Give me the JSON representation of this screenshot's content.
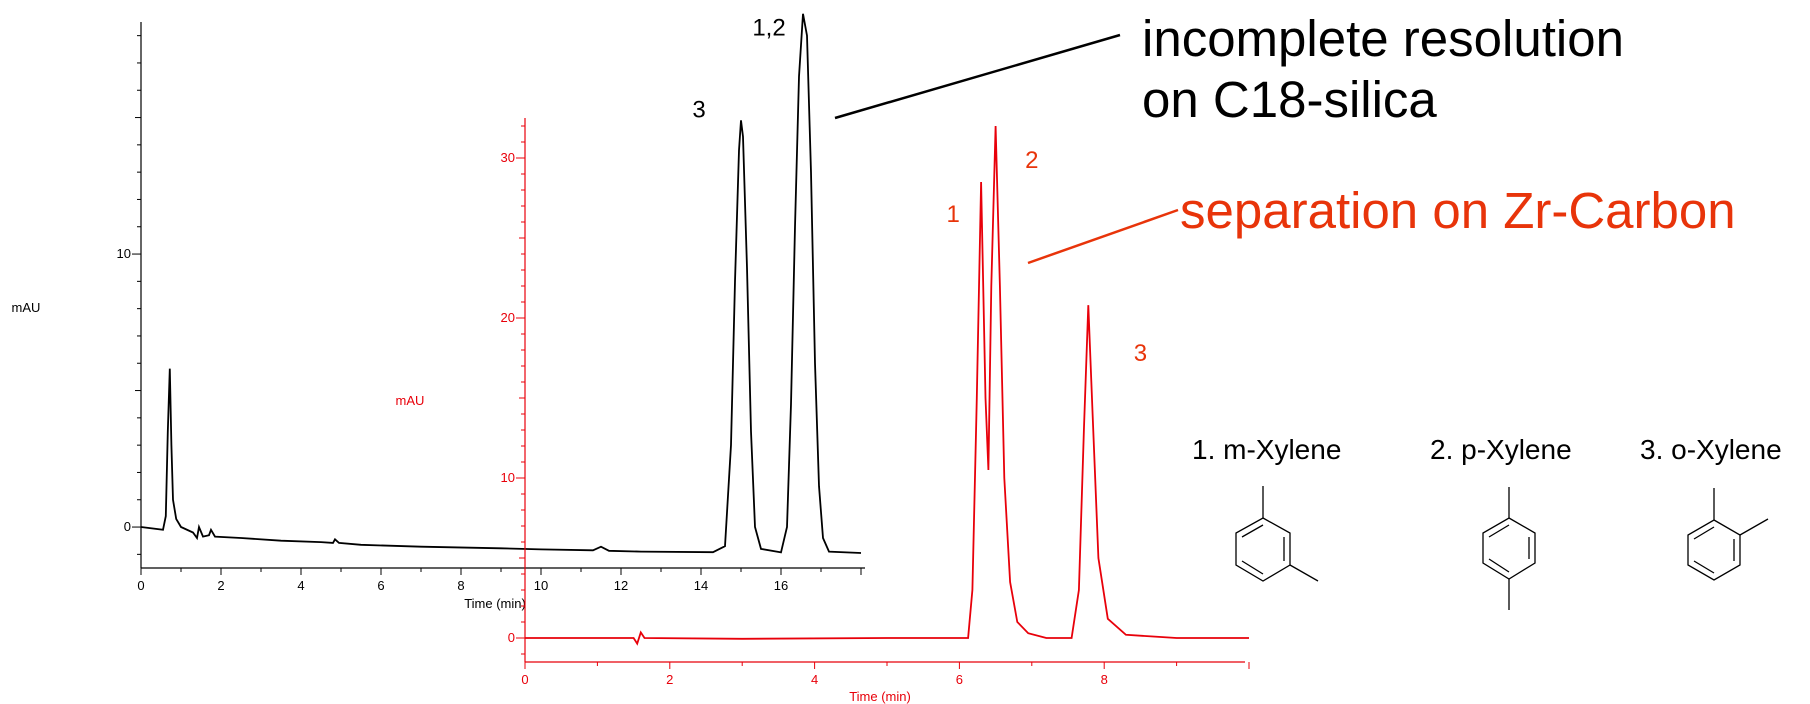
{
  "chart_data": [
    {
      "type": "line",
      "color": "#000000",
      "xlabel": "Time (min)",
      "ylabel": "mAU",
      "xlim": [
        0,
        18
      ],
      "ylim": [
        -1.5,
        18.5
      ],
      "x_ticks": [
        0,
        2,
        4,
        6,
        8,
        10,
        12,
        14,
        16
      ],
      "x_tick_labels": [
        "0",
        "2",
        "4",
        "6",
        "8",
        "10",
        "12",
        "14",
        "16"
      ],
      "y_ticks": [
        0,
        10
      ],
      "y_tick_labels": [
        "0",
        "10"
      ],
      "peak_labels": [
        {
          "text": "3",
          "x": 15.0,
          "y": 15.0
        },
        {
          "text": "1,2",
          "x": 16.6,
          "y": 18.0
        }
      ],
      "series": [
        {
          "points": [
            [
              0,
              0.0
            ],
            [
              0.55,
              -0.1
            ],
            [
              0.62,
              0.4
            ],
            [
              0.67,
              3.5
            ],
            [
              0.72,
              5.8
            ],
            [
              0.76,
              3.0
            ],
            [
              0.8,
              1.0
            ],
            [
              0.88,
              0.3
            ],
            [
              1.0,
              0.0
            ],
            [
              1.3,
              -0.2
            ],
            [
              1.4,
              -0.4
            ],
            [
              1.45,
              0.0
            ],
            [
              1.55,
              -0.35
            ],
            [
              1.7,
              -0.3
            ],
            [
              1.75,
              -0.1
            ],
            [
              1.85,
              -0.35
            ],
            [
              2.5,
              -0.4
            ],
            [
              3.5,
              -0.5
            ],
            [
              4.5,
              -0.55
            ],
            [
              4.8,
              -0.58
            ],
            [
              4.85,
              -0.45
            ],
            [
              4.95,
              -0.58
            ],
            [
              5.5,
              -0.65
            ],
            [
              7,
              -0.72
            ],
            [
              9,
              -0.78
            ],
            [
              10,
              -0.82
            ],
            [
              11.3,
              -0.85
            ],
            [
              11.5,
              -0.72
            ],
            [
              11.7,
              -0.87
            ],
            [
              12.5,
              -0.9
            ],
            [
              14.3,
              -0.92
            ],
            [
              14.6,
              -0.7
            ],
            [
              14.75,
              3.0
            ],
            [
              14.85,
              9.0
            ],
            [
              14.95,
              13.8
            ],
            [
              15.0,
              14.9
            ],
            [
              15.05,
              14.3
            ],
            [
              15.15,
              9.5
            ],
            [
              15.25,
              3.5
            ],
            [
              15.35,
              0.0
            ],
            [
              15.5,
              -0.8
            ],
            [
              16.0,
              -0.93
            ],
            [
              16.15,
              0.0
            ],
            [
              16.25,
              4.5
            ],
            [
              16.35,
              11.0
            ],
            [
              16.45,
              16.5
            ],
            [
              16.55,
              18.8
            ],
            [
              16.65,
              18.0
            ],
            [
              16.75,
              13.0
            ],
            [
              16.85,
              6.0
            ],
            [
              16.95,
              1.5
            ],
            [
              17.05,
              -0.4
            ],
            [
              17.2,
              -0.9
            ],
            [
              18,
              -0.95
            ]
          ]
        }
      ]
    },
    {
      "type": "line",
      "color": "#e8000a",
      "xlabel": "Time (min)",
      "ylabel": "mAU",
      "xlim": [
        0,
        10
      ],
      "ylim": [
        -1.5,
        32.5
      ],
      "x_ticks": [
        0,
        2,
        4,
        6,
        8
      ],
      "x_tick_labels": [
        "0",
        "2",
        "4",
        "6",
        "8"
      ],
      "y_ticks": [
        0,
        10,
        20,
        30
      ],
      "y_tick_labels": [
        "0",
        "10",
        "20",
        "30"
      ],
      "peak_labels": [
        {
          "text": "1",
          "x": 6.3,
          "y": 27.5
        },
        {
          "text": "2",
          "x": 7.0,
          "y": 30.0
        },
        {
          "text": "3",
          "x": 8.5,
          "y": 18.8
        }
      ],
      "series": [
        {
          "points": [
            [
              0,
              0.0
            ],
            [
              1.5,
              0.0
            ],
            [
              1.55,
              -0.35
            ],
            [
              1.6,
              0.35
            ],
            [
              1.65,
              0.0
            ],
            [
              3,
              -0.05
            ],
            [
              5,
              0.0
            ],
            [
              6.0,
              0.0
            ],
            [
              6.12,
              0.0
            ],
            [
              6.18,
              3.0
            ],
            [
              6.24,
              15.0
            ],
            [
              6.3,
              28.5
            ],
            [
              6.36,
              15.0
            ],
            [
              6.4,
              10.5
            ],
            [
              6.44,
              22.0
            ],
            [
              6.5,
              32.0
            ],
            [
              6.56,
              22.0
            ],
            [
              6.62,
              10.0
            ],
            [
              6.7,
              3.5
            ],
            [
              6.8,
              1.0
            ],
            [
              6.95,
              0.3
            ],
            [
              7.2,
              0.0
            ],
            [
              7.55,
              0.0
            ],
            [
              7.65,
              3.0
            ],
            [
              7.72,
              13.0
            ],
            [
              7.78,
              20.8
            ],
            [
              7.84,
              14.0
            ],
            [
              7.92,
              5.0
            ],
            [
              8.05,
              1.2
            ],
            [
              8.3,
              0.2
            ],
            [
              9,
              0.0
            ],
            [
              10,
              0.0
            ]
          ]
        }
      ]
    }
  ],
  "annotations": {
    "top_line1": "incomplete resolution",
    "top_line2": "on C18-silica",
    "red_text": "separation on Zr-Carbon"
  },
  "compounds": [
    {
      "label": "1.  m-Xylene",
      "structure": "m-xylene"
    },
    {
      "label": "2. p-Xylene",
      "structure": "p-xylene"
    },
    {
      "label": "3.  o-Xylene",
      "structure": "o-xylene"
    }
  ]
}
